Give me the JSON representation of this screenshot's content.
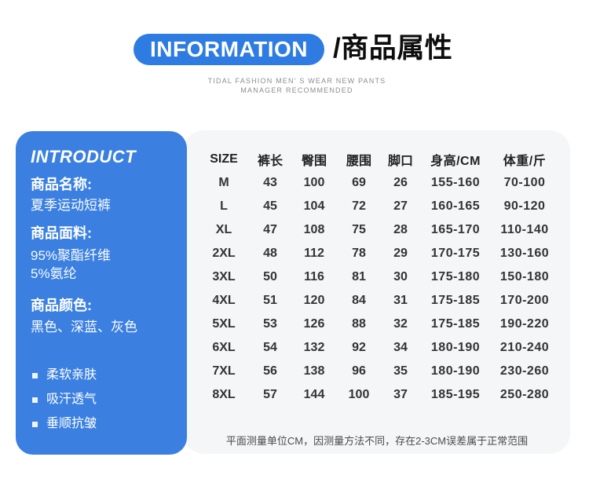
{
  "header": {
    "badge": "INFORMATION",
    "title": "/商品属性",
    "tagline_line1": "TIDAL FASHION MEN' S WEAR NEW PANTS",
    "tagline_line2": "MANAGER RECOMMENDED"
  },
  "sidebar": {
    "title": "INTRODUCT",
    "sections": [
      {
        "label": "商品名称:",
        "lines": [
          "夏季运动短裤"
        ]
      },
      {
        "label": "商品面料:",
        "lines": [
          "95%聚酯纤维",
          "5%氨纶"
        ]
      },
      {
        "label": "商品颜色:",
        "lines": [
          "黑色、深蓝、灰色"
        ]
      }
    ],
    "features": [
      "柔软亲肤",
      "吸汗透气",
      "垂顺抗皱"
    ]
  },
  "size_table": {
    "headers": [
      "SIZE",
      "裤长",
      "臀围",
      "腰围",
      "脚口",
      "身高/CM",
      "体重/斤"
    ],
    "rows": [
      [
        "M",
        "43",
        "100",
        "69",
        "26",
        "155-160",
        "70-100"
      ],
      [
        "L",
        "45",
        "104",
        "72",
        "27",
        "160-165",
        "90-120"
      ],
      [
        "XL",
        "47",
        "108",
        "75",
        "28",
        "165-170",
        "110-140"
      ],
      [
        "2XL",
        "48",
        "112",
        "78",
        "29",
        "170-175",
        "130-160"
      ],
      [
        "3XL",
        "50",
        "116",
        "81",
        "30",
        "175-180",
        "150-180"
      ],
      [
        "4XL",
        "51",
        "120",
        "84",
        "31",
        "175-185",
        "170-200"
      ],
      [
        "5XL",
        "53",
        "126",
        "88",
        "32",
        "175-185",
        "190-220"
      ],
      [
        "6XL",
        "54",
        "132",
        "92",
        "34",
        "180-190",
        "210-240"
      ],
      [
        "7XL",
        "56",
        "138",
        "96",
        "35",
        "180-190",
        "230-260"
      ],
      [
        "8XL",
        "57",
        "144",
        "100",
        "37",
        "185-195",
        "250-280"
      ]
    ],
    "note": "平面测量单位CM，因测量方法不同，存在2-3CM误差属于正常范围"
  },
  "colors": {
    "badge_blue": "#2e7ce2",
    "panel_blue": "#3b80e0",
    "card_bg": "#f5f6f7"
  }
}
